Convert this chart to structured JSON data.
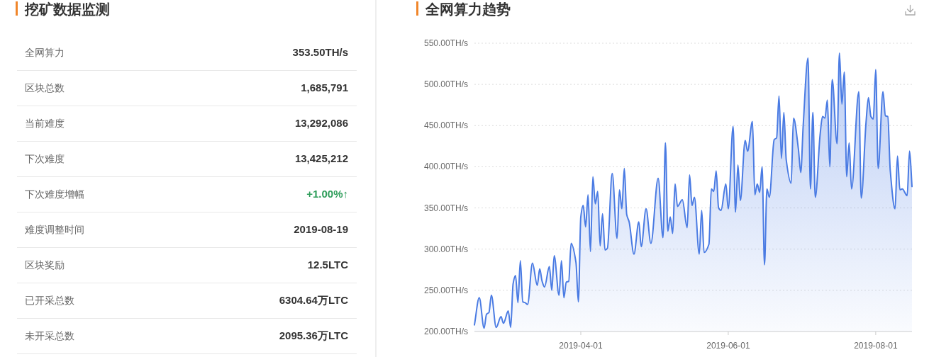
{
  "chart_data": [
    {
      "type": "other",
      "title": "挖矿数据监测",
      "categories": [
        "全网算力",
        "区块总数",
        "当前难度",
        "下次难度",
        "下次难度增幅",
        "难度调整时间",
        "区块奖励",
        "已开采总数",
        "未开采总数"
      ],
      "value_labels": [
        "353.50TH/s",
        "1,685,791",
        "13,292,086",
        "13,425,212",
        "+1.00%↑",
        "2019-08-19",
        "12.5LTC",
        "6304.64万LTC",
        "2095.36万LTC"
      ],
      "colors": [
        "#333333",
        "#333333",
        "#333333",
        "#333333",
        "#2e9d5a",
        "#333333",
        "#333333",
        "#333333",
        "#333333"
      ]
    },
    {
      "type": "area",
      "title": "全网算力趋势",
      "x": [
        "2019-02-16",
        "2019-02-18",
        "2019-02-20",
        "2019-02-21",
        "2019-02-22",
        "2019-02-23",
        "2019-02-25",
        "2019-02-27",
        "2019-02-28",
        "2019-03-02",
        "2019-03-03",
        "2019-03-04",
        "2019-03-05",
        "2019-03-06",
        "2019-03-07",
        "2019-03-08",
        "2019-03-09",
        "2019-03-10",
        "2019-03-12",
        "2019-03-14",
        "2019-03-15",
        "2019-03-16",
        "2019-03-17",
        "2019-03-19",
        "2019-03-20",
        "2019-03-21",
        "2019-03-23",
        "2019-03-24",
        "2019-03-25",
        "2019-03-26",
        "2019-03-27",
        "2019-03-28",
        "2019-03-30",
        "2019-03-31",
        "2019-04-01",
        "2019-04-02",
        "2019-04-03",
        "2019-04-04",
        "2019-04-05",
        "2019-04-06",
        "2019-04-07",
        "2019-04-08",
        "2019-04-09",
        "2019-04-10",
        "2019-04-11",
        "2019-04-12",
        "2019-04-14",
        "2019-04-16",
        "2019-04-17",
        "2019-04-18",
        "2019-04-19",
        "2019-04-20",
        "2019-04-21",
        "2019-04-23",
        "2019-04-25",
        "2019-04-26",
        "2019-04-28",
        "2019-04-30",
        "2019-05-03",
        "2019-05-05",
        "2019-05-06",
        "2019-05-07",
        "2019-05-08",
        "2019-05-09",
        "2019-05-10",
        "2019-05-11",
        "2019-05-13",
        "2019-05-15",
        "2019-05-16",
        "2019-05-17",
        "2019-05-18",
        "2019-05-20",
        "2019-05-21",
        "2019-05-22",
        "2019-05-24",
        "2019-05-25",
        "2019-05-26",
        "2019-05-27",
        "2019-05-28",
        "2019-05-29",
        "2019-05-31",
        "2019-06-01",
        "2019-06-03",
        "2019-06-04",
        "2019-06-05",
        "2019-06-06",
        "2019-06-08",
        "2019-06-09",
        "2019-06-11",
        "2019-06-12",
        "2019-06-13",
        "2019-06-14",
        "2019-06-15",
        "2019-06-16",
        "2019-06-17",
        "2019-06-18",
        "2019-06-20",
        "2019-06-21",
        "2019-06-22",
        "2019-06-23",
        "2019-06-24",
        "2019-06-25",
        "2019-06-27",
        "2019-06-28",
        "2019-06-30",
        "2019-07-01",
        "2019-07-02",
        "2019-07-04",
        "2019-07-05",
        "2019-07-06",
        "2019-07-07",
        "2019-07-09",
        "2019-07-10",
        "2019-07-11",
        "2019-07-12",
        "2019-07-13",
        "2019-07-14",
        "2019-07-16",
        "2019-07-17",
        "2019-07-18",
        "2019-07-19",
        "2019-07-20",
        "2019-07-21",
        "2019-07-22",
        "2019-07-25",
        "2019-07-26",
        "2019-07-28",
        "2019-07-29",
        "2019-07-30",
        "2019-07-31",
        "2019-08-01",
        "2019-08-02",
        "2019-08-04",
        "2019-08-05",
        "2019-08-06",
        "2019-08-07",
        "2019-08-09",
        "2019-08-10",
        "2019-08-11",
        "2019-08-12",
        "2019-08-14",
        "2019-08-15",
        "2019-08-16"
      ],
      "series": [
        {
          "color": "#4a7be3",
          "values": [
            208,
            241,
            204,
            221,
            223,
            244,
            205,
            218,
            210,
            225,
            205,
            258,
            268,
            235,
            286,
            236,
            235,
            233,
            283,
            256,
            276,
            261,
            254,
            279,
            250,
            292,
            244,
            286,
            241,
            260,
            261,
            307,
            284,
            236,
            339,
            353,
            327,
            366,
            297,
            388,
            355,
            370,
            304,
            343,
            299,
            301,
            392,
            313,
            372,
            349,
            398,
            342,
            333,
            294,
            333,
            303,
            349,
            307,
            386,
            314,
            429,
            322,
            339,
            319,
            379,
            352,
            360,
            326,
            390,
            353,
            363,
            294,
            347,
            296,
            306,
            373,
            370,
            395,
            350,
            347,
            379,
            349,
            449,
            345,
            402,
            359,
            432,
            419,
            455,
            366,
            379,
            369,
            400,
            281,
            373,
            363,
            433,
            435,
            486,
            410,
            466,
            408,
            380,
            459,
            422,
            393,
            450,
            532,
            373,
            466,
            363,
            439,
            461,
            459,
            481,
            400,
            506,
            428,
            538,
            476,
            515,
            388,
            429,
            373,
            491,
            362,
            454,
            484,
            461,
            458,
            518,
            398,
            491,
            462,
            461,
            396,
            349,
            413,
            372,
            373,
            365,
            419,
            376
          ]
        }
      ],
      "xlim": [
        "2019-02-16",
        "2019-08-16"
      ],
      "xticks": [
        "2019-04-01",
        "2019-06-01",
        "2019-08-01"
      ],
      "ylim": [
        200,
        550
      ],
      "yticks": [
        {
          "value": 200,
          "label": "200.00TH/s"
        },
        {
          "value": 250,
          "label": "250.00TH/s"
        },
        {
          "value": 300,
          "label": "300.00TH/s"
        },
        {
          "value": 350,
          "label": "350.00TH/s"
        },
        {
          "value": 400,
          "label": "400.00TH/s"
        },
        {
          "value": 450,
          "label": "450.00TH/s"
        },
        {
          "value": 500,
          "label": "500.00TH/s"
        },
        {
          "value": 550,
          "label": "550.00TH/s"
        }
      ],
      "grid": "y"
    }
  ]
}
